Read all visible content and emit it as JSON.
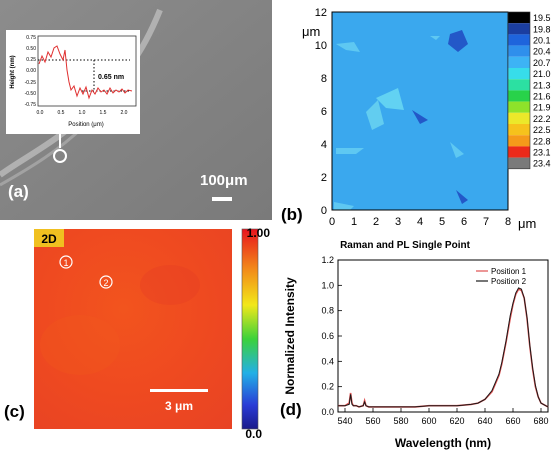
{
  "panel_a": {
    "label": "(a)",
    "scalebar_text": "100μm",
    "inset": {
      "ylabel": "Height (nm)",
      "xlabel": "Position (μm)",
      "yticks": [
        "0.75",
        "0.50",
        "0.25",
        "0.00",
        "-0.25",
        "-0.50",
        "-0.75"
      ],
      "xticks": [
        "0.0",
        "0.5",
        "1.0",
        "1.5",
        "2.0"
      ],
      "step_annotation": "0.65 nm"
    }
  },
  "panel_b": {
    "label": "(b)",
    "y_unit": "μm",
    "x_unit": "μm",
    "yticks": [
      "12",
      "10",
      "8",
      "6",
      "4",
      "2",
      "0"
    ],
    "xticks": [
      "0",
      "1",
      "2",
      "3",
      "4",
      "5",
      "6",
      "7",
      "8"
    ],
    "colorbar_labels": [
      "19.5",
      "19.8",
      "20.1",
      "20.4",
      "20.7",
      "21.0",
      "21.3",
      "21.6",
      "21.9",
      "22.2",
      "22.5",
      "22.8",
      "23.1",
      "23.4"
    ],
    "colorbar_colors": [
      "#000000",
      "#1b3ea0",
      "#1e64dc",
      "#2f8fec",
      "#3db3f5",
      "#37ddea",
      "#2ce0a2",
      "#28d24a",
      "#8ee22a",
      "#ece82a",
      "#f6c21c",
      "#f59a1a",
      "#ec2a1a",
      "#7a7a7a"
    ],
    "caption": "Raman and PL Single Point"
  },
  "panel_c": {
    "label": "(c)",
    "tag": "2D",
    "markers": [
      "1",
      "2"
    ],
    "scalebar_text": "3 μm",
    "colorbar_top": "1.00",
    "colorbar_bottom": "0.0"
  },
  "panel_d": {
    "label": "(d)",
    "chart_data": {
      "type": "line",
      "xlabel": "Wavelength (nm)",
      "ylabel": "Normalized Intensity",
      "xlim": [
        535,
        685
      ],
      "ylim": [
        0.0,
        1.2
      ],
      "xticks": [
        "540",
        "560",
        "580",
        "600",
        "620",
        "640",
        "660",
        "680"
      ],
      "yticks": [
        "0.0",
        "0.2",
        "0.4",
        "0.6",
        "0.8",
        "1.0",
        "1.2"
      ],
      "legend_position": "top-right",
      "series": [
        {
          "name": "Position 1",
          "color": "#e05050",
          "x": [
            535,
            540,
            543,
            544,
            545,
            546,
            548,
            550,
            553,
            554,
            555,
            557,
            560,
            570,
            580,
            590,
            600,
            610,
            620,
            630,
            635,
            640,
            645,
            650,
            652,
            655,
            658,
            660,
            662,
            664,
            666,
            668,
            670,
            672,
            674,
            676,
            678,
            680,
            685
          ],
          "y": [
            0.05,
            0.05,
            0.07,
            0.15,
            0.07,
            0.05,
            0.05,
            0.04,
            0.05,
            0.09,
            0.05,
            0.04,
            0.04,
            0.04,
            0.04,
            0.04,
            0.05,
            0.05,
            0.05,
            0.06,
            0.07,
            0.1,
            0.16,
            0.29,
            0.38,
            0.55,
            0.74,
            0.85,
            0.93,
            0.97,
            0.96,
            0.9,
            0.74,
            0.52,
            0.34,
            0.2,
            0.12,
            0.07,
            0.04
          ]
        },
        {
          "name": "Position 2",
          "color": "#1a1a1a",
          "x": [
            535,
            540,
            543,
            544,
            545,
            546,
            548,
            550,
            553,
            554,
            555,
            557,
            560,
            570,
            580,
            590,
            600,
            610,
            620,
            630,
            635,
            640,
            645,
            650,
            652,
            655,
            658,
            660,
            662,
            664,
            666,
            668,
            670,
            672,
            674,
            676,
            678,
            680,
            685
          ],
          "y": [
            0.05,
            0.05,
            0.06,
            0.14,
            0.06,
            0.05,
            0.05,
            0.04,
            0.05,
            0.08,
            0.05,
            0.04,
            0.04,
            0.04,
            0.04,
            0.04,
            0.05,
            0.05,
            0.05,
            0.06,
            0.07,
            0.1,
            0.17,
            0.3,
            0.39,
            0.56,
            0.76,
            0.86,
            0.94,
            0.98,
            0.97,
            0.9,
            0.75,
            0.53,
            0.35,
            0.21,
            0.12,
            0.07,
            0.04
          ]
        }
      ]
    }
  }
}
